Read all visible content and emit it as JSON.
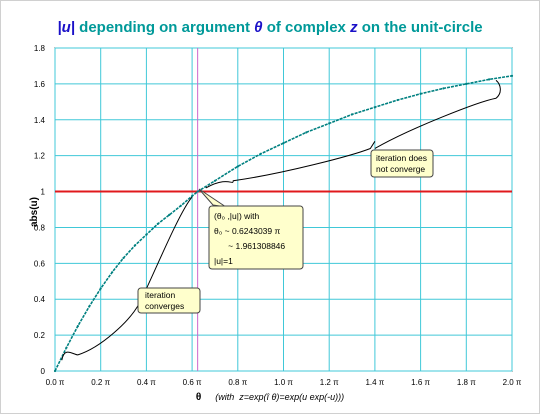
{
  "chart_data": {
    "type": "line",
    "title": {
      "prefix": "|u|",
      "middle": " depending on argument ",
      "theta": "θ",
      "of_text": " of complex ",
      "z": "z",
      "suffix": " on the unit-circle"
    },
    "xlabel": {
      "symbol": "θ",
      "text": "(with  z=exp(î θ)=exp(u exp(-u)))"
    },
    "ylabel": "abs(u)",
    "xlim": [
      0,
      2
    ],
    "ylim": [
      0,
      1.8
    ],
    "x_ticks": [
      "0.0 π",
      "0.2 π",
      "0.4 π",
      "0.6 π",
      "0.8 π",
      "1.0 π",
      "1.2 π",
      "1.4 π",
      "1.6 π",
      "1.8 π",
      "2.0 π"
    ],
    "y_ticks": [
      "0",
      "0.2",
      "0.4",
      "0.6",
      "0.8",
      "1",
      "1.2",
      "1.4",
      "1.6",
      "1.8"
    ],
    "grid": true,
    "series": [
      {
        "color": "#008080",
        "x": [
          0.0,
          0.05,
          0.1,
          0.15,
          0.2,
          0.25,
          0.3,
          0.35,
          0.4,
          0.45,
          0.5,
          0.55,
          0.6,
          0.6243,
          0.7,
          0.8,
          0.9,
          1.0,
          1.1,
          1.2,
          1.3,
          1.4,
          1.5,
          1.6,
          1.7,
          1.8,
          1.9,
          2.0
        ],
        "y": [
          0.0,
          0.13,
          0.25,
          0.36,
          0.46,
          0.55,
          0.63,
          0.7,
          0.76,
          0.82,
          0.87,
          0.92,
          0.975,
          1.0,
          1.06,
          1.14,
          1.21,
          1.27,
          1.33,
          1.38,
          1.43,
          1.47,
          1.51,
          1.545,
          1.575,
          1.6,
          1.625,
          1.645
        ]
      }
    ],
    "reference_line": {
      "y": 1,
      "color": "#e0191c"
    },
    "marker_line": {
      "x": 0.6243,
      "color": "#cc66cc"
    },
    "annotations": {
      "converges": {
        "lines": [
          "iteration",
          "converges"
        ]
      },
      "not_converge": {
        "lines": [
          "iteration does",
          "not converge"
        ]
      },
      "intersection": {
        "lines": [
          "(θ₀ ,|u|)       with",
          "θ₀ ~ 0.6243039 π",
          "      ~ 1.961308846",
          "|u|=1"
        ]
      }
    },
    "colors": {
      "plot_background": "#ffffff",
      "grid": "#40c8d8",
      "callout_fill": "#ffffcc"
    }
  }
}
